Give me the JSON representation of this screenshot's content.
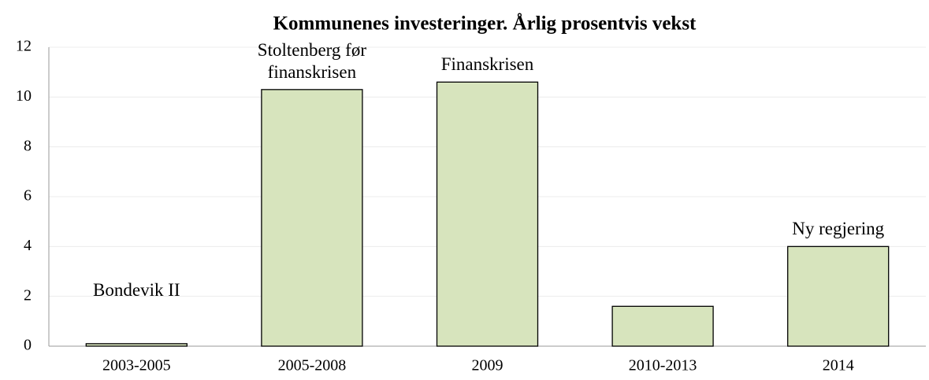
{
  "chart_data": {
    "type": "bar",
    "title": "Kommunenes investeringer. Årlig prosentvis vekst",
    "categories": [
      "2003-2005",
      "2005-2008",
      "2009",
      "2010-2013",
      "2014"
    ],
    "values": [
      0.1,
      10.3,
      10.6,
      1.6,
      4.0
    ],
    "annotations": [
      "Bondevik II",
      "Stoltenberg før finanskrisen",
      "Finanskrisen",
      null,
      "Ny regjering"
    ],
    "color": "#d7e4bd",
    "ylim": [
      0,
      12
    ],
    "yticks": [
      0,
      2,
      4,
      6,
      8,
      10,
      12
    ],
    "grid": true
  }
}
